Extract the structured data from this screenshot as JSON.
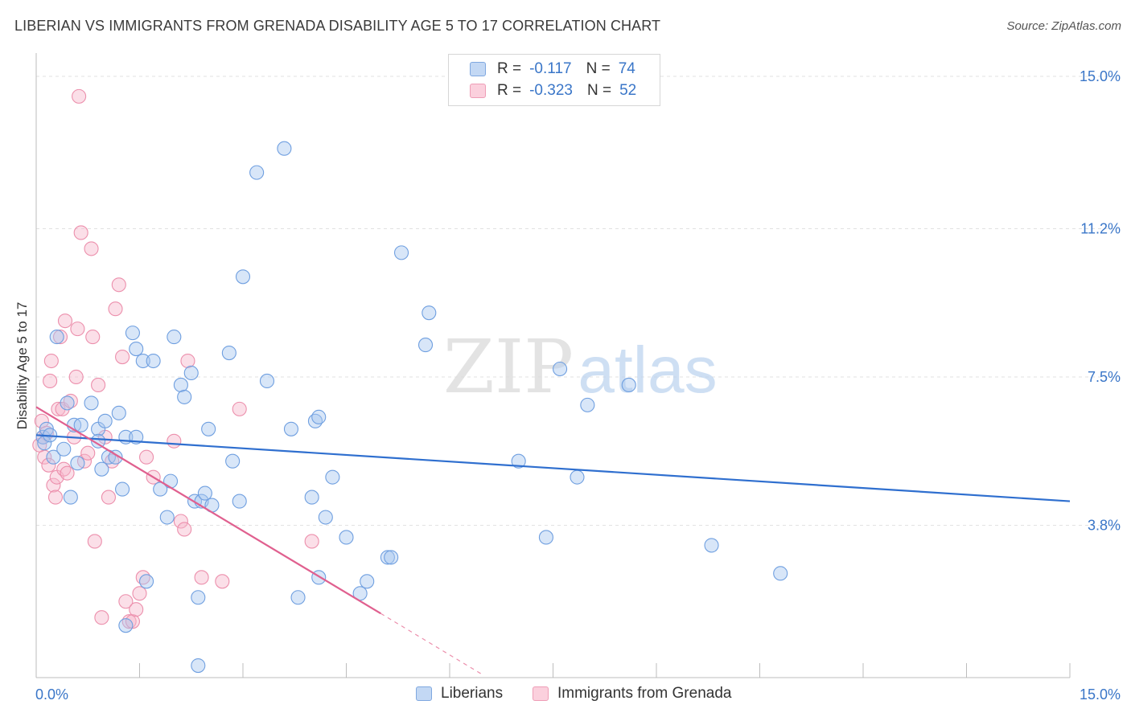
{
  "title": "LIBERIAN VS IMMIGRANTS FROM GRENADA DISABILITY AGE 5 TO 17 CORRELATION CHART",
  "source": "Source: ZipAtlas.com",
  "watermark": {
    "zip": "ZIP",
    "atlas": "atlas"
  },
  "legend": {
    "rows": [
      {
        "r_label": "R =",
        "r_value": "-0.117",
        "n_label": "N =",
        "n_value": "74"
      },
      {
        "r_label": "R =",
        "r_value": "-0.323",
        "n_label": "N =",
        "n_value": "52"
      }
    ]
  },
  "colors": {
    "blue_fill": "#a8c8f0",
    "blue_stroke": "#6f9fe0",
    "blue_line": "#2f6fcf",
    "pink_fill": "#f6b9cb",
    "pink_stroke": "#ec8fac",
    "pink_line": "#e0608f",
    "tick_label": "#3a76c8",
    "grid": "#e2e2e2"
  },
  "chart_data": {
    "type": "scatter",
    "title": "LIBERIAN VS IMMIGRANTS FROM GRENADA DISABILITY AGE 5 TO 17 CORRELATION CHART",
    "xlabel": "",
    "ylabel": "Disability Age 5 to 17",
    "xlim": [
      0,
      15
    ],
    "ylim": [
      0,
      15.4
    ],
    "x_tick_labels": [
      "0.0%",
      "15.0%"
    ],
    "y_ticks": [
      3.8,
      7.5,
      11.2,
      15.0
    ],
    "y_tick_labels": [
      "3.8%",
      "7.5%",
      "11.2%",
      "15.0%"
    ],
    "grid": true,
    "legend_position": "top-center",
    "series": [
      {
        "name": "Liberians",
        "color": "#a8c8f0",
        "trend": {
          "x": [
            0.0,
            15.0
          ],
          "y": [
            6.05,
            4.4
          ]
        },
        "points": [
          [
            0.1,
            6.0
          ],
          [
            0.12,
            5.85
          ],
          [
            0.15,
            6.2
          ],
          [
            0.2,
            6.05
          ],
          [
            0.25,
            5.5
          ],
          [
            0.3,
            8.5
          ],
          [
            0.4,
            5.7
          ],
          [
            0.45,
            6.85
          ],
          [
            0.5,
            4.5
          ],
          [
            0.55,
            6.3
          ],
          [
            0.6,
            5.35
          ],
          [
            0.65,
            6.3
          ],
          [
            0.8,
            6.85
          ],
          [
            0.9,
            6.2
          ],
          [
            0.95,
            5.2
          ],
          [
            1.0,
            6.4
          ],
          [
            1.05,
            5.5
          ],
          [
            1.15,
            5.5
          ],
          [
            1.2,
            6.6
          ],
          [
            1.25,
            4.7
          ],
          [
            1.3,
            6.0
          ],
          [
            1.3,
            1.3
          ],
          [
            1.4,
            8.6
          ],
          [
            1.45,
            8.2
          ],
          [
            1.55,
            7.9
          ],
          [
            1.6,
            2.4
          ],
          [
            1.7,
            7.9
          ],
          [
            1.8,
            4.7
          ],
          [
            1.9,
            4.0
          ],
          [
            1.95,
            4.9
          ],
          [
            2.0,
            8.5
          ],
          [
            2.1,
            7.3
          ],
          [
            2.15,
            7.0
          ],
          [
            2.25,
            7.6
          ],
          [
            2.35,
            2.0
          ],
          [
            2.35,
            0.3
          ],
          [
            2.3,
            4.4
          ],
          [
            2.4,
            4.4
          ],
          [
            2.45,
            4.6
          ],
          [
            2.5,
            6.2
          ],
          [
            2.8,
            8.1
          ],
          [
            2.85,
            5.4
          ],
          [
            2.95,
            4.4
          ],
          [
            3.0,
            10.0
          ],
          [
            3.2,
            12.6
          ],
          [
            3.35,
            7.4
          ],
          [
            3.6,
            13.2
          ],
          [
            3.7,
            6.2
          ],
          [
            3.8,
            2.0
          ],
          [
            4.0,
            4.5
          ],
          [
            4.05,
            6.4
          ],
          [
            4.1,
            6.5
          ],
          [
            4.1,
            2.5
          ],
          [
            4.2,
            4.0
          ],
          [
            4.3,
            5.0
          ],
          [
            4.5,
            3.5
          ],
          [
            4.7,
            2.1
          ],
          [
            4.8,
            2.4
          ],
          [
            5.1,
            3.0
          ],
          [
            5.15,
            3.0
          ],
          [
            5.3,
            10.6
          ],
          [
            5.65,
            8.3
          ],
          [
            5.7,
            9.1
          ],
          [
            7.0,
            5.4
          ],
          [
            7.4,
            3.5
          ],
          [
            7.6,
            7.7
          ],
          [
            7.85,
            5.0
          ],
          [
            8.0,
            6.8
          ],
          [
            8.6,
            7.3
          ],
          [
            9.8,
            3.3
          ],
          [
            10.8,
            2.6
          ],
          [
            1.45,
            6.0
          ],
          [
            0.9,
            5.9
          ],
          [
            2.55,
            4.3
          ]
        ]
      },
      {
        "name": "Immigrants from Grenada",
        "color": "#f6b9cb",
        "trend": {
          "x": [
            0.0,
            5.0
          ],
          "y": [
            6.75,
            1.6
          ]
        },
        "trend_dashed": {
          "x": [
            5.0,
            6.5
          ],
          "y": [
            1.6,
            0.05
          ]
        },
        "points": [
          [
            0.05,
            5.8
          ],
          [
            0.08,
            6.4
          ],
          [
            0.1,
            6.0
          ],
          [
            0.12,
            5.5
          ],
          [
            0.15,
            6.1
          ],
          [
            0.18,
            5.3
          ],
          [
            0.2,
            7.4
          ],
          [
            0.22,
            7.9
          ],
          [
            0.25,
            4.8
          ],
          [
            0.28,
            4.5
          ],
          [
            0.3,
            5.0
          ],
          [
            0.32,
            6.7
          ],
          [
            0.35,
            8.5
          ],
          [
            0.38,
            6.7
          ],
          [
            0.4,
            5.2
          ],
          [
            0.42,
            8.9
          ],
          [
            0.45,
            5.1
          ],
          [
            0.5,
            6.9
          ],
          [
            0.55,
            6.0
          ],
          [
            0.58,
            7.5
          ],
          [
            0.6,
            8.7
          ],
          [
            0.62,
            14.5
          ],
          [
            0.65,
            11.1
          ],
          [
            0.7,
            5.4
          ],
          [
            0.75,
            5.6
          ],
          [
            0.8,
            10.7
          ],
          [
            0.82,
            8.5
          ],
          [
            0.85,
            3.4
          ],
          [
            0.9,
            7.3
          ],
          [
            0.95,
            1.5
          ],
          [
            1.0,
            6.0
          ],
          [
            1.05,
            4.5
          ],
          [
            1.1,
            5.4
          ],
          [
            1.15,
            9.2
          ],
          [
            1.2,
            9.8
          ],
          [
            1.25,
            8.0
          ],
          [
            1.3,
            1.9
          ],
          [
            1.35,
            1.4
          ],
          [
            1.4,
            1.4
          ],
          [
            1.45,
            1.7
          ],
          [
            1.5,
            2.1
          ],
          [
            1.55,
            2.5
          ],
          [
            1.6,
            5.5
          ],
          [
            1.7,
            5.0
          ],
          [
            2.0,
            5.9
          ],
          [
            2.1,
            3.9
          ],
          [
            2.15,
            3.7
          ],
          [
            2.2,
            7.9
          ],
          [
            2.4,
            2.5
          ],
          [
            2.7,
            2.4
          ],
          [
            2.95,
            6.7
          ],
          [
            4.0,
            3.4
          ]
        ]
      }
    ]
  },
  "bottom_legend": [
    "Liberians",
    "Immigrants from Grenada"
  ]
}
